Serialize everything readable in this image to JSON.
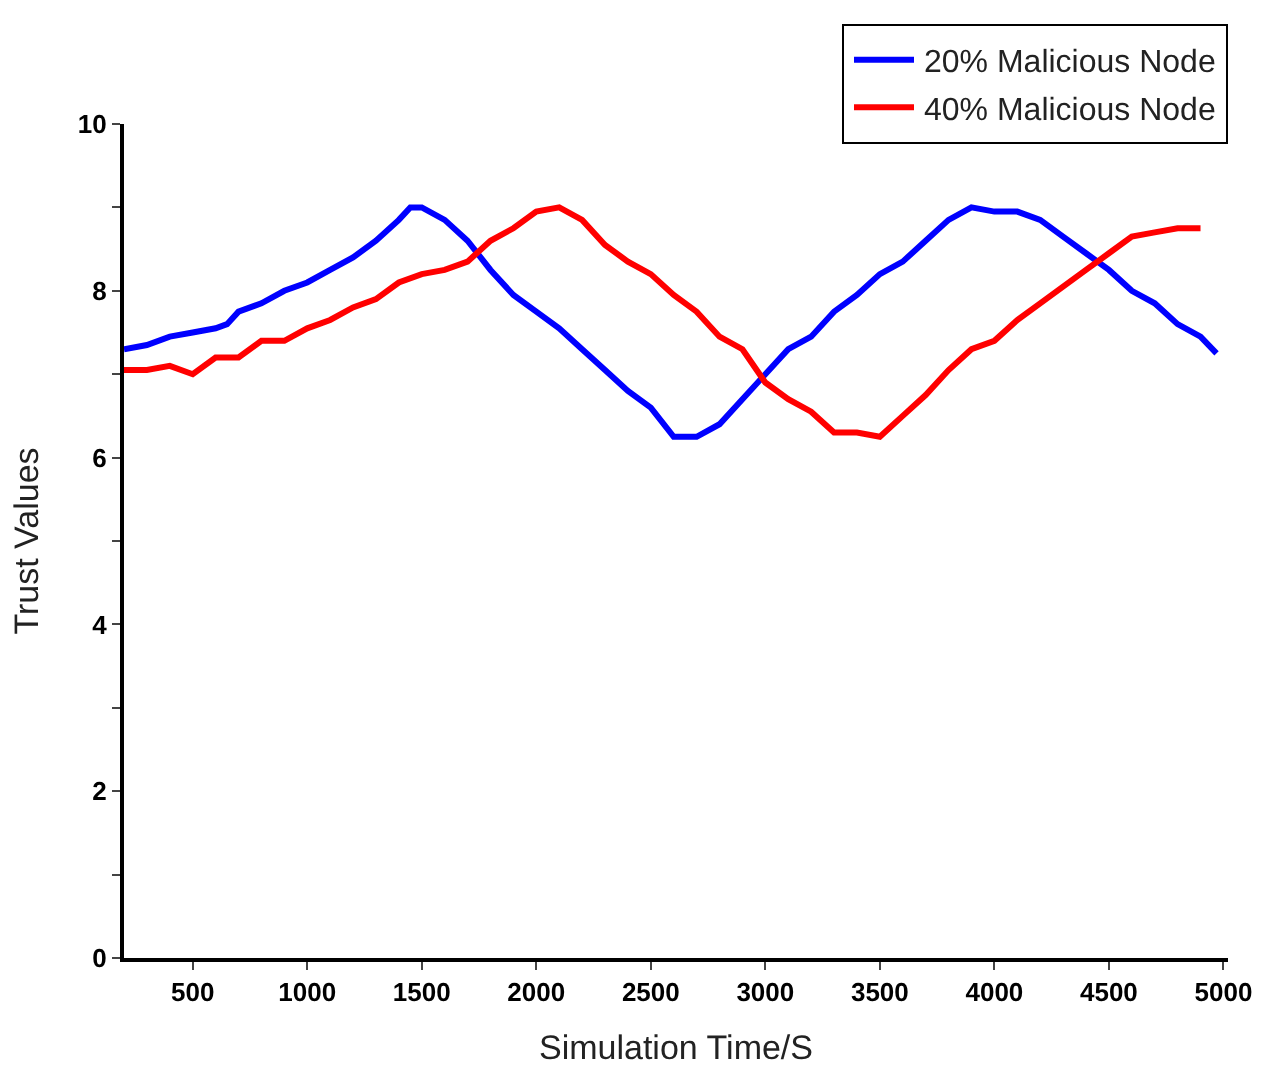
{
  "chart_data": {
    "type": "line",
    "xlabel": "Simulation Time/S",
    "ylabel": "Trust Values",
    "xlim": [
      200,
      5020
    ],
    "xticks": [
      500,
      1000,
      1500,
      2000,
      2500,
      3000,
      3500,
      4000,
      4500,
      5000
    ],
    "ylim": [
      0,
      10
    ],
    "yticks": [
      0,
      {
        "value": 1,
        "label": null
      },
      2,
      {
        "value": 3,
        "label": null
      },
      4,
      {
        "value": 5,
        "label": null
      },
      6,
      {
        "value": 7,
        "label": null
      },
      8,
      {
        "value": 9,
        "label": null
      },
      10
    ],
    "legend": "top right",
    "marker": "none",
    "line_style": "solid",
    "series": [
      {
        "name": "20% Malicious Node",
        "color": "#0000ff",
        "x": [
          200,
          300,
          400,
          500,
          600,
          650,
          700,
          800,
          900,
          1000,
          1100,
          1200,
          1300,
          1400,
          1450,
          1500,
          1600,
          1700,
          1800,
          1900,
          2000,
          2100,
          2200,
          2300,
          2400,
          2500,
          2600,
          2700,
          2800,
          2900,
          3000,
          3100,
          3200,
          3300,
          3400,
          3500,
          3600,
          3700,
          3800,
          3900,
          4000,
          4100,
          4200,
          4300,
          4400,
          4500,
          4600,
          4700,
          4800,
          4900,
          4970
        ],
        "values": [
          7.3,
          7.35,
          7.45,
          7.5,
          7.55,
          7.6,
          7.75,
          7.85,
          8.0,
          8.1,
          8.25,
          8.4,
          8.6,
          8.85,
          9.0,
          9.0,
          8.85,
          8.6,
          8.25,
          7.95,
          7.75,
          7.55,
          7.3,
          7.05,
          6.8,
          6.6,
          6.25,
          6.25,
          6.4,
          6.7,
          7.0,
          7.3,
          7.45,
          7.75,
          7.95,
          8.2,
          8.35,
          8.6,
          8.85,
          9.0,
          8.95,
          8.95,
          8.85,
          8.65,
          8.45,
          8.25,
          8.0,
          7.85,
          7.6,
          7.45,
          7.25
        ]
      },
      {
        "name": "40% Malicious Node",
        "color": "#ff0000",
        "x": [
          200,
          300,
          400,
          500,
          600,
          700,
          800,
          900,
          1000,
          1100,
          1200,
          1300,
          1400,
          1500,
          1600,
          1700,
          1800,
          1900,
          2000,
          2100,
          2200,
          2300,
          2400,
          2500,
          2600,
          2700,
          2800,
          2900,
          3000,
          3100,
          3200,
          3300,
          3400,
          3500,
          3600,
          3700,
          3800,
          3900,
          4000,
          4100,
          4200,
          4300,
          4400,
          4500,
          4600,
          4700,
          4800,
          4900
        ],
        "values": [
          7.05,
          7.05,
          7.1,
          7.0,
          7.2,
          7.2,
          7.4,
          7.4,
          7.55,
          7.65,
          7.8,
          7.9,
          8.1,
          8.2,
          8.25,
          8.35,
          8.6,
          8.75,
          8.95,
          9.0,
          8.85,
          8.55,
          8.35,
          8.2,
          7.95,
          7.75,
          7.45,
          7.3,
          6.9,
          6.7,
          6.55,
          6.3,
          6.3,
          6.25,
          6.5,
          6.75,
          7.05,
          7.3,
          7.4,
          7.65,
          7.85,
          8.05,
          8.25,
          8.45,
          8.65,
          8.7,
          8.75,
          8.75
        ]
      }
    ]
  }
}
